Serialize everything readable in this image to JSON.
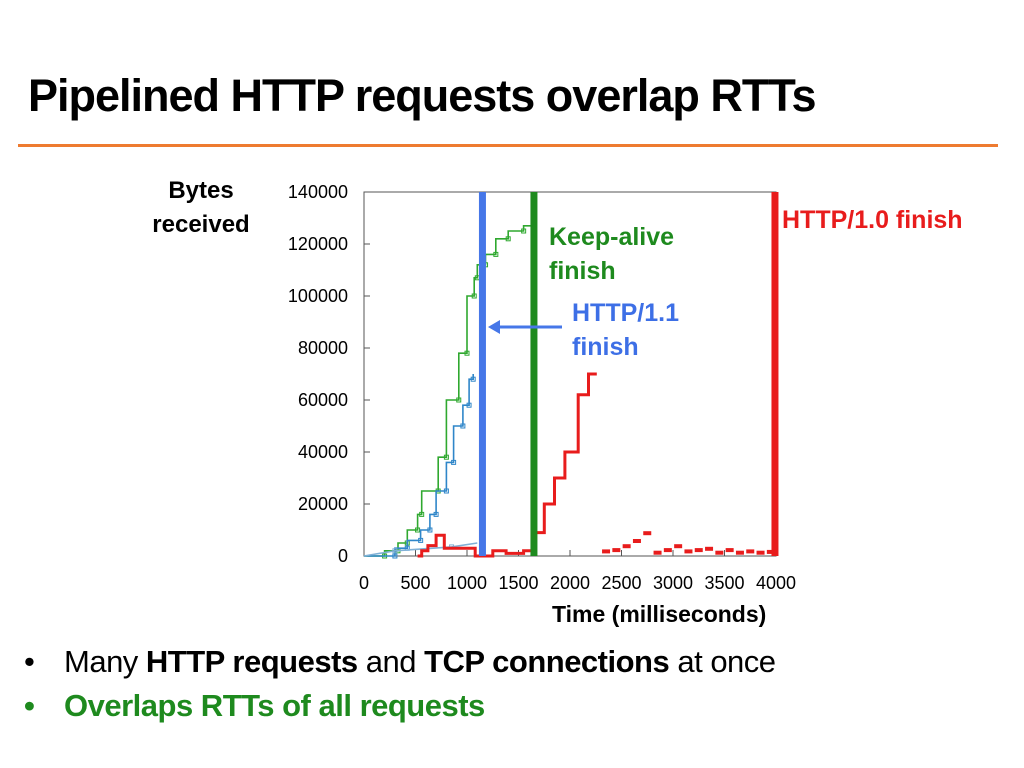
{
  "slide": {
    "title": "Pipelined HTTP requests overlap RTTs",
    "accent_color": "#ee7b30"
  },
  "chart_data": {
    "type": "line",
    "ylabel": "Bytes received",
    "xlabel": "Time (milliseconds)",
    "xlim": [
      0,
      4000
    ],
    "ylim": [
      0,
      140000
    ],
    "x_ticks": [
      0,
      500,
      1000,
      1500,
      2000,
      2500,
      3000,
      3500,
      4000
    ],
    "y_ticks": [
      0,
      20000,
      40000,
      60000,
      80000,
      100000,
      120000,
      140000
    ],
    "grid": false,
    "series": [
      {
        "color": "#2fa82f",
        "points": [
          [
            0,
            0
          ],
          [
            200,
            0
          ],
          [
            200,
            2000
          ],
          [
            330,
            2000
          ],
          [
            330,
            5000
          ],
          [
            420,
            5000
          ],
          [
            420,
            10000
          ],
          [
            520,
            10000
          ],
          [
            520,
            16000
          ],
          [
            560,
            16000
          ],
          [
            560,
            25000
          ],
          [
            720,
            25000
          ],
          [
            720,
            38000
          ],
          [
            800,
            38000
          ],
          [
            800,
            60000
          ],
          [
            920,
            60000
          ],
          [
            920,
            78000
          ],
          [
            1000,
            78000
          ],
          [
            1000,
            100000
          ],
          [
            1070,
            100000
          ],
          [
            1070,
            107000
          ],
          [
            1100,
            107000
          ],
          [
            1100,
            112000
          ],
          [
            1180,
            112000
          ],
          [
            1180,
            116000
          ],
          [
            1280,
            116000
          ],
          [
            1280,
            122000
          ],
          [
            1400,
            122000
          ],
          [
            1400,
            125000
          ],
          [
            1550,
            125000
          ],
          [
            1550,
            127000
          ],
          [
            1650,
            127000
          ]
        ]
      },
      {
        "color": "#2f86c9",
        "points": [
          [
            0,
            0
          ],
          [
            300,
            0
          ],
          [
            300,
            3000
          ],
          [
            420,
            3000
          ],
          [
            420,
            6000
          ],
          [
            550,
            6000
          ],
          [
            550,
            10000
          ],
          [
            640,
            10000
          ],
          [
            640,
            16000
          ],
          [
            700,
            16000
          ],
          [
            700,
            25000
          ],
          [
            800,
            25000
          ],
          [
            800,
            36000
          ],
          [
            870,
            36000
          ],
          [
            870,
            50000
          ],
          [
            960,
            50000
          ],
          [
            960,
            58000
          ],
          [
            1020,
            58000
          ],
          [
            1020,
            68000
          ],
          [
            1060,
            68000
          ],
          [
            1060,
            70000
          ]
        ]
      },
      {
        "color": "#7fb0d6",
        "points": [
          [
            0,
            0
          ],
          [
            300,
            2000
          ],
          [
            600,
            2800
          ],
          [
            850,
            3500
          ],
          [
            1100,
            5000
          ]
        ]
      },
      {
        "color": "#e81c1c",
        "points": [
          [
            520,
            0
          ],
          [
            560,
            0
          ],
          [
            560,
            2000
          ],
          [
            620,
            2000
          ],
          [
            620,
            4000
          ],
          [
            700,
            4000
          ],
          [
            700,
            8000
          ],
          [
            780,
            8000
          ],
          [
            780,
            3000
          ],
          [
            1080,
            3000
          ],
          [
            1080,
            0
          ],
          [
            1250,
            0
          ],
          [
            1250,
            2000
          ],
          [
            1380,
            2000
          ],
          [
            1380,
            1000
          ],
          [
            1550,
            1000
          ],
          [
            1550,
            2000
          ],
          [
            1650,
            2000
          ],
          [
            1650,
            9000
          ],
          [
            1750,
            9000
          ],
          [
            1750,
            20000
          ],
          [
            1850,
            20000
          ],
          [
            1850,
            30000
          ],
          [
            1950,
            30000
          ],
          [
            1950,
            40000
          ],
          [
            2080,
            40000
          ],
          [
            2080,
            62000
          ],
          [
            2180,
            62000
          ],
          [
            2180,
            70000
          ],
          [
            2260,
            70000
          ]
        ]
      }
    ],
    "markers": [
      {
        "color": "#e81c1c",
        "points": [
          [
            2350,
            1000
          ],
          [
            2450,
            1500
          ],
          [
            2550,
            3000
          ],
          [
            2650,
            5000
          ],
          [
            2750,
            8000
          ],
          [
            2850,
            500
          ],
          [
            2950,
            1500
          ],
          [
            3050,
            3000
          ],
          [
            3150,
            1000
          ],
          [
            3250,
            1500
          ],
          [
            3350,
            2000
          ],
          [
            3450,
            500
          ],
          [
            3550,
            1500
          ],
          [
            3650,
            500
          ],
          [
            3750,
            1000
          ],
          [
            3850,
            500
          ],
          [
            3950,
            800
          ]
        ]
      }
    ],
    "vlines": [
      {
        "x": 1150,
        "color": "#4677e8"
      },
      {
        "x": 1650,
        "color": "#1e8a1e"
      },
      {
        "x": 3990,
        "color": "#e81c1c"
      }
    ],
    "annotations": [
      {
        "text": "Keep-alive finish",
        "color": "#1e8a1e"
      },
      {
        "text": "HTTP/1.1 finish",
        "color": "#4677e8",
        "arrow": true
      },
      {
        "text": "HTTP/1.0 finish",
        "color": "#e81c1c"
      }
    ]
  },
  "labels": {
    "ylabel_line1": "Bytes",
    "ylabel_line2": "received",
    "xlabel": "Time (milliseconds)",
    "keepalive_line1": "Keep-alive",
    "keepalive_line2": "finish",
    "http11_line1": "HTTP/1.1",
    "http11_line2": "finish",
    "http10": "HTTP/1.0 finish"
  },
  "bullets": {
    "dot": "•",
    "b1_a": "Many ",
    "b1_b": "HTTP requests",
    "b1_c": " and ",
    "b1_d": "TCP connections",
    "b1_e": " at once",
    "b2": "Overlaps RTTs of all requests"
  }
}
